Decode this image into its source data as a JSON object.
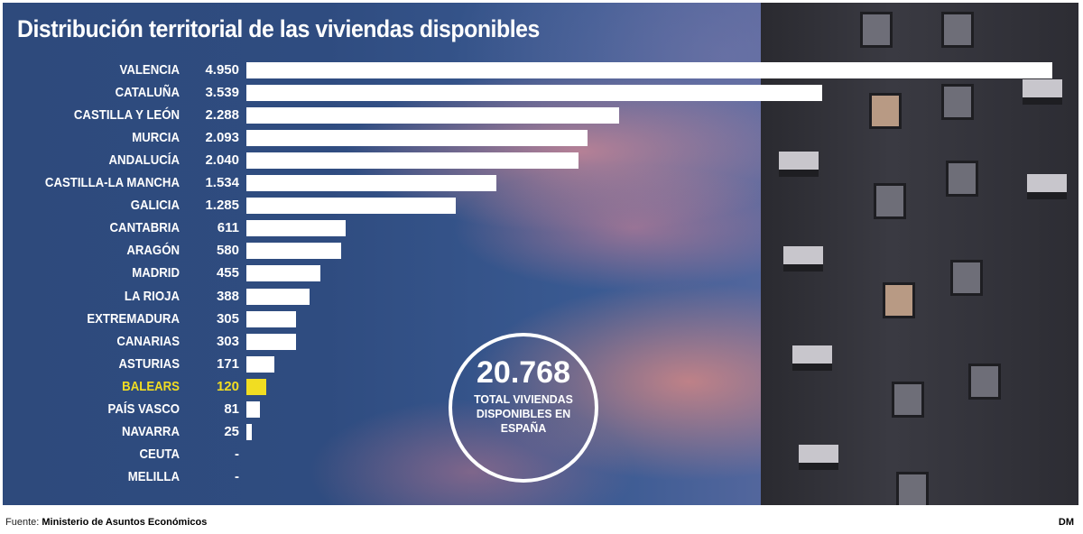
{
  "chart_data": {
    "type": "bar",
    "orientation": "horizontal",
    "title": "Distribución territorial de las viviendas disponibles",
    "categories": [
      "VALENCIA",
      "CATALUÑA",
      "CASTILLA Y LEÓN",
      "MURCIA",
      "ANDALUCÍA",
      "CASTILLA-LA MANCHA",
      "GALICIA",
      "CANTABRIA",
      "ARAGÓN",
      "MADRID",
      "LA RIOJA",
      "EXTREMADURA",
      "CANARIAS",
      "ASTURIAS",
      "BALEARS",
      "PAÍS VASCO",
      "NAVARRA",
      "CEUTA",
      "MELILLA"
    ],
    "values": [
      4950,
      3539,
      2288,
      2093,
      2040,
      1534,
      1285,
      611,
      580,
      455,
      388,
      305,
      303,
      171,
      120,
      81,
      25,
      null,
      null
    ],
    "value_labels": [
      "4.950",
      "3.539",
      "2.288",
      "2.093",
      "2.040",
      "1.534",
      "1.285",
      "611",
      "580",
      "455",
      "388",
      "305",
      "303",
      "171",
      "120",
      "81",
      "25",
      "-",
      "-"
    ],
    "highlight": "BALEARS",
    "colors": {
      "bar": "#ffffff",
      "highlight": "#f1dd22",
      "background": "#2f4c80"
    },
    "grid": false
  },
  "callout": {
    "value": "20.768",
    "label": "TOTAL VIVIENDAS DISPONIBLES EN ESPAÑA"
  },
  "footer": {
    "source_prefix": "Fuente:",
    "source": "Ministerio de Asuntos Económicos",
    "credit": "DM"
  }
}
